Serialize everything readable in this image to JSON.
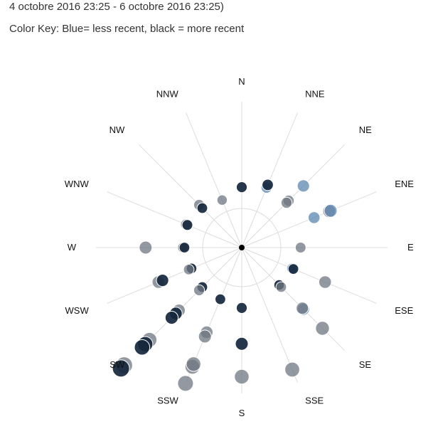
{
  "header": {
    "title_line": "4 octobre 2016 23:25 - 6 octobre 2016 23:25)",
    "color_key": "Color Key: Blue= less recent, black = more recent"
  },
  "chart_data": {
    "type": "scatter",
    "subtype": "wind-direction-rose",
    "directions": [
      "N",
      "NNE",
      "NE",
      "ENE",
      "E",
      "ESE",
      "SE",
      "SSE",
      "S",
      "SSW",
      "SW",
      "WSW",
      "W",
      "WNW",
      "NW",
      "NNW"
    ],
    "points": [
      {
        "dir": "N",
        "r": 0.26,
        "recency": 0.95
      },
      {
        "dir": "S",
        "r": 0.26,
        "recency": 1.0
      },
      {
        "dir": "S",
        "r": 0.5,
        "recency": 0.92
      },
      {
        "dir": "S",
        "r": 0.72,
        "recency": 0.45
      },
      {
        "dir": "NNE",
        "r": 0.29,
        "recency": 0.2
      },
      {
        "dir": "NNE",
        "r": 0.31,
        "recency": 0.9
      },
      {
        "dir": "NE",
        "r": 0.3,
        "recency": 0.7
      },
      {
        "dir": "NE",
        "r": 0.28,
        "recency": 0.3
      },
      {
        "dir": "NE",
        "r": 0.44,
        "recency": 0.15
      },
      {
        "dir": "ENE",
        "r": 0.38,
        "recency": 0.15
      },
      {
        "dir": "ENE",
        "r": 0.49,
        "recency": 0.6
      },
      {
        "dir": "ENE",
        "r": 0.5,
        "recency": 0.1
      },
      {
        "dir": "E",
        "r": 0.25,
        "recency": 0.3
      },
      {
        "dir": "ESE",
        "r": 0.22,
        "recency": 0.2
      },
      {
        "dir": "ESE",
        "r": 0.23,
        "recency": 0.95
      },
      {
        "dir": "ESE",
        "r": 0.46,
        "recency": 0.45
      },
      {
        "dir": "SE",
        "r": 0.21,
        "recency": 0.9
      },
      {
        "dir": "SE",
        "r": 0.23,
        "recency": 0.5
      },
      {
        "dir": "SE",
        "r": 0.44,
        "recency": 0.1
      },
      {
        "dir": "SE",
        "r": 0.43,
        "recency": 0.55
      },
      {
        "dir": "SE",
        "r": 0.62,
        "recency": 0.45
      },
      {
        "dir": "SSE",
        "r": 0.74,
        "recency": 0.45
      },
      {
        "dir": "SSW",
        "r": 0.23,
        "recency": 0.95
      },
      {
        "dir": "SSW",
        "r": 0.47,
        "recency": 0.5
      },
      {
        "dir": "SSW",
        "r": 0.5,
        "recency": 0.45
      },
      {
        "dir": "SSW",
        "r": 0.72,
        "recency": 0.45
      },
      {
        "dir": "SSW",
        "r": 0.7,
        "recency": 0.7
      },
      {
        "dir": "SSW",
        "r": 0.84,
        "recency": 0.5
      },
      {
        "dir": "SW",
        "r": 0.23,
        "recency": 0.9
      },
      {
        "dir": "SW",
        "r": 0.26,
        "recency": 0.7
      },
      {
        "dir": "SW",
        "r": 0.45,
        "recency": 0.6
      },
      {
        "dir": "SW",
        "r": 0.48,
        "recency": 0.8
      },
      {
        "dir": "SW",
        "r": 0.52,
        "recency": 0.95
      },
      {
        "dir": "SW",
        "r": 0.73,
        "recency": 0.5
      },
      {
        "dir": "SW",
        "r": 0.77,
        "recency": 0.8
      },
      {
        "dir": "SW",
        "r": 0.8,
        "recency": 0.85
      },
      {
        "dir": "SW",
        "r": 0.97,
        "recency": 0.45
      },
      {
        "dir": "SW",
        "r": 1.0,
        "recency": 0.85
      },
      {
        "dir": "WSW",
        "r": 0.22,
        "recency": 0.85
      },
      {
        "dir": "WSW",
        "r": 0.24,
        "recency": 0.3
      },
      {
        "dir": "WSW",
        "r": 0.46,
        "recency": 0.35
      },
      {
        "dir": "WSW",
        "r": 0.43,
        "recency": 0.95
      },
      {
        "dir": "W",
        "r": 0.25,
        "recency": 0.65
      },
      {
        "dir": "W",
        "r": 0.24,
        "recency": 0.9
      },
      {
        "dir": "W",
        "r": 0.5,
        "recency": 0.45
      },
      {
        "dir": "WNW",
        "r": 0.26,
        "recency": 0.5
      },
      {
        "dir": "WNW",
        "r": 0.25,
        "recency": 0.8
      },
      {
        "dir": "NW",
        "r": 0.26,
        "recency": 0.4
      },
      {
        "dir": "NW",
        "r": 0.23,
        "recency": 0.95
      },
      {
        "dir": "NNW",
        "r": 0.2,
        "recency": 0.3
      }
    ],
    "color_scale": {
      "less_recent": "#6a9ac8",
      "more_recent": "#0b1a2e",
      "older_gray": "#6f7780"
    },
    "grid": true
  }
}
